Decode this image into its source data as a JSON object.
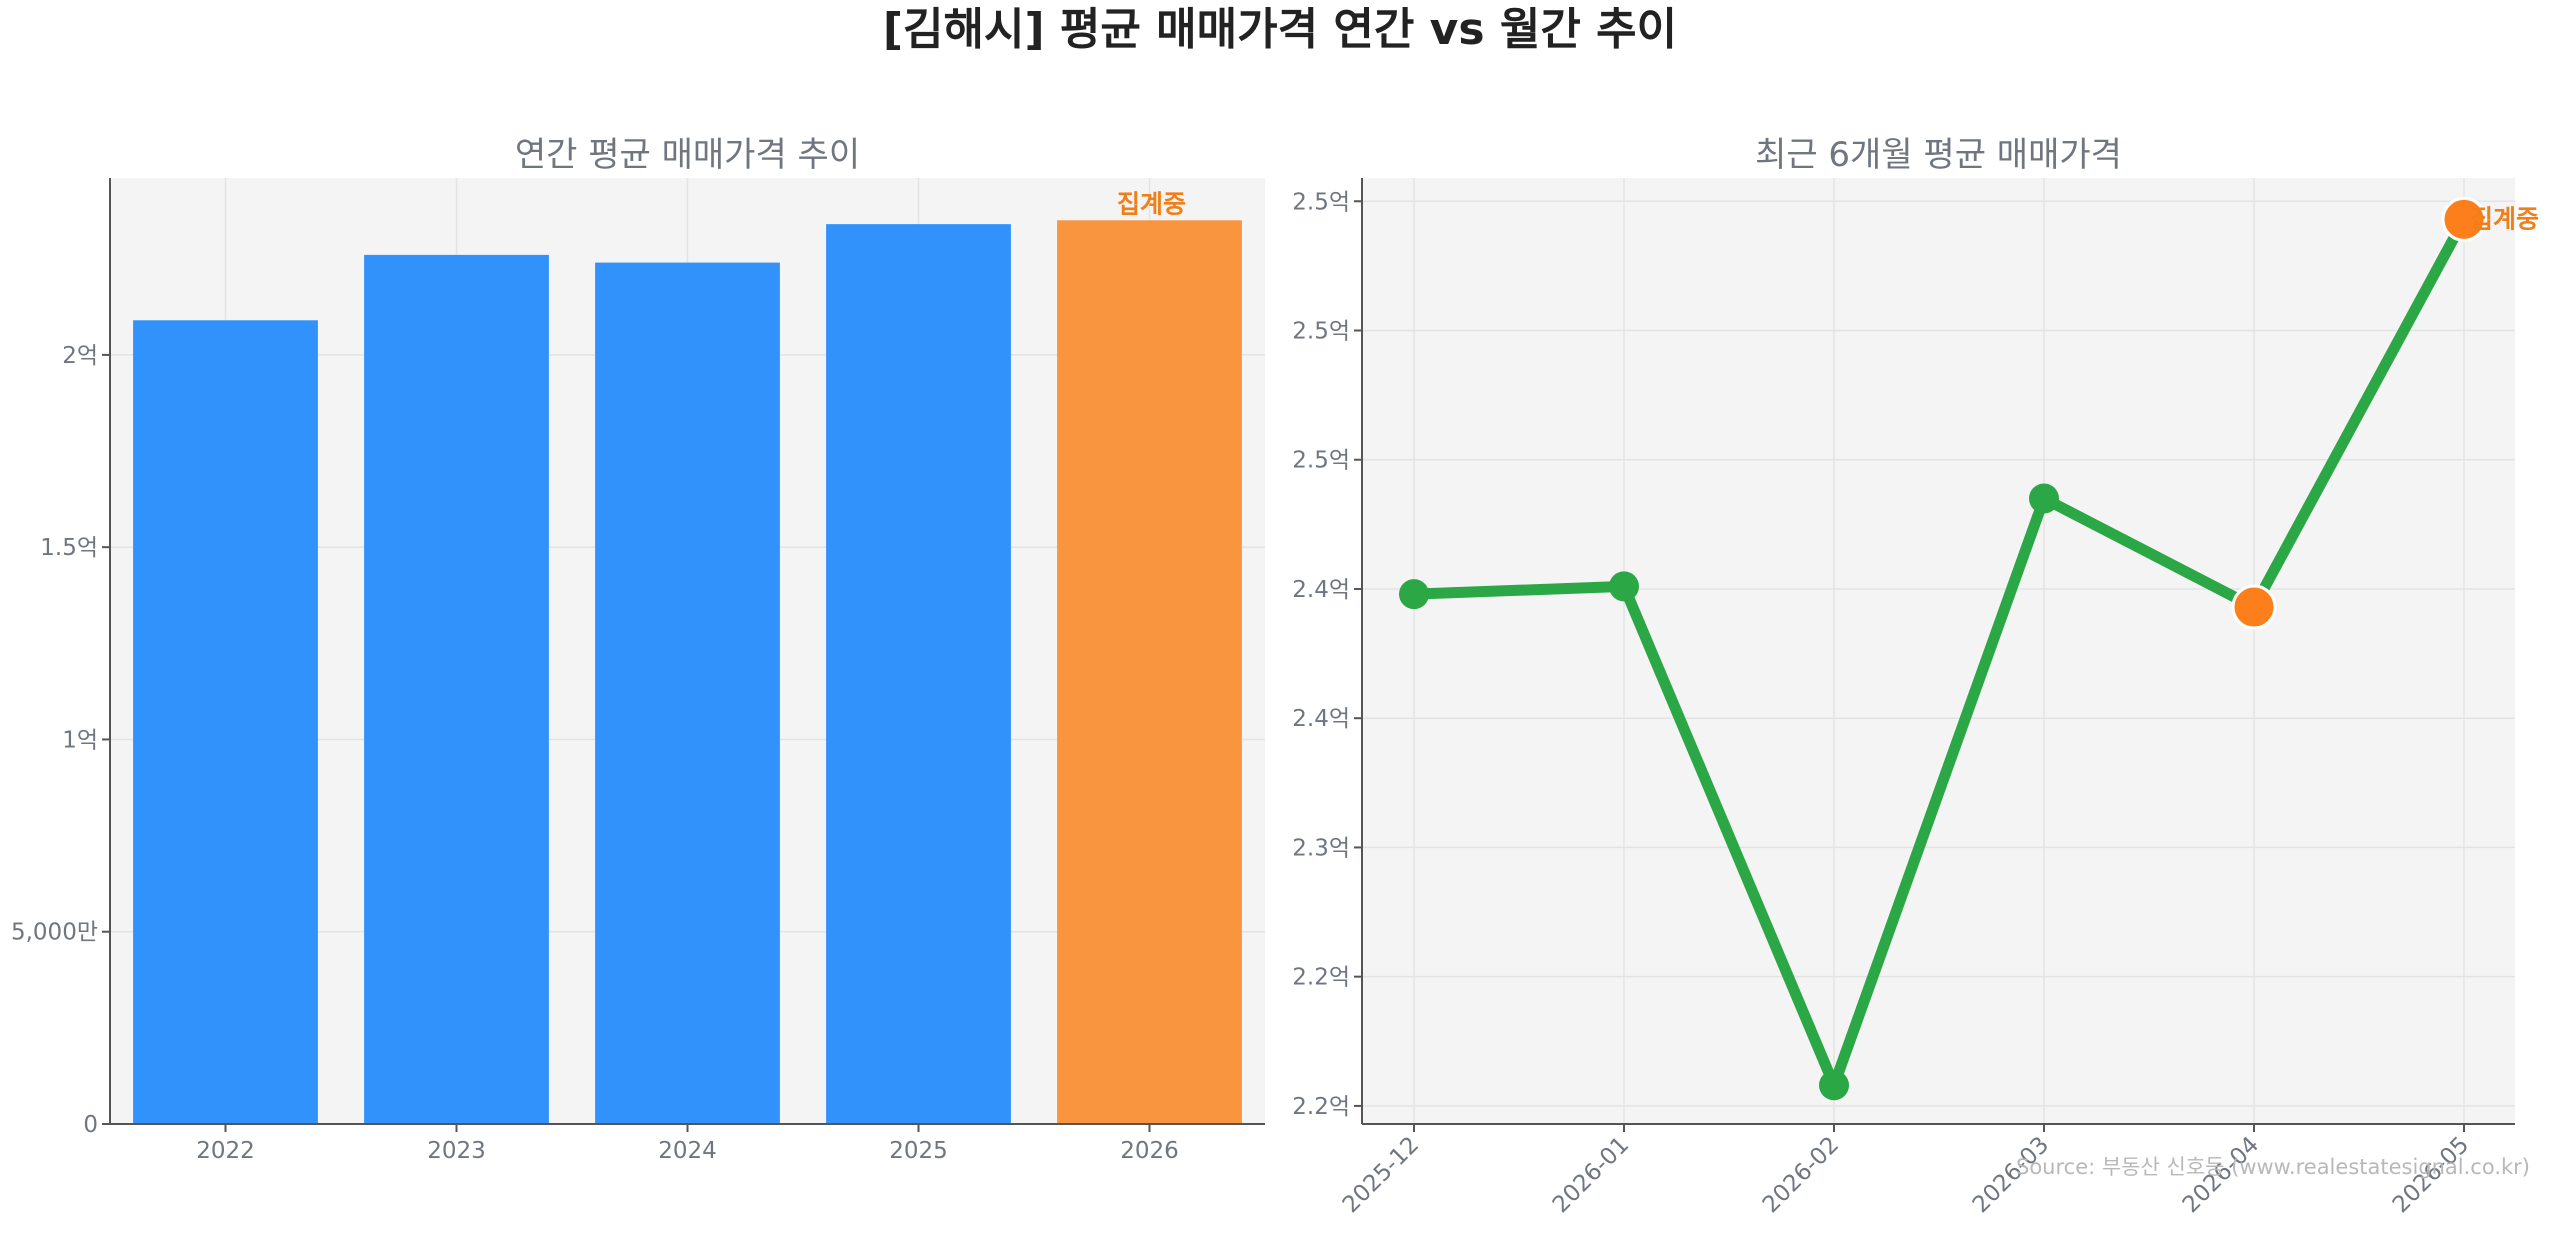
{
  "title": "[김해시] 평균 매매가격 연간 vs 월간 추이",
  "source": "Source: 부동산 신호등 (www.realestatesignal.co.kr)",
  "colors": {
    "bar": "#3192fb",
    "bar_highlight": "#f9953e",
    "line": "#2ba745",
    "marker_highlight": "#fd7f1b"
  },
  "chart_data": [
    {
      "type": "bar",
      "title": "연간 평균 매매가격 추이",
      "categories": [
        "2022",
        "2023",
        "2024",
        "2025",
        "2026"
      ],
      "values": [
        209000000,
        226000000,
        224000000,
        234000000,
        235000000
      ],
      "highlight_index": 4,
      "annotation": "집계중",
      "ylim": [
        0,
        246000000
      ],
      "yticks": [
        0,
        50000000,
        100000000,
        150000000,
        200000000
      ],
      "ytick_labels": [
        "0",
        "5,000만",
        "1억",
        "1.5억",
        "2억"
      ],
      "grid": true
    },
    {
      "type": "line",
      "title": "최근 6개월 평균 매매가격",
      "x": [
        "2025-12",
        "2026-01",
        "2026-02",
        "2026-03",
        "2026-04",
        "2026-05"
      ],
      "values": [
        239800000,
        240100000,
        220800000,
        243500000,
        239300000,
        254300000
      ],
      "highlight_indices": [
        4,
        5
      ],
      "annotation": "집계중",
      "ylim": [
        219300000,
        255900000
      ],
      "yticks": [
        220000000,
        225000000,
        230000000,
        235000000,
        240000000,
        245000000,
        250000000,
        255000000
      ],
      "ytick_labels": [
        "2.2억",
        "2.2억",
        "2.3억",
        "2.4억",
        "2.4억",
        "2.5억",
        "2.5억",
        "2.5억"
      ],
      "grid": true
    }
  ]
}
